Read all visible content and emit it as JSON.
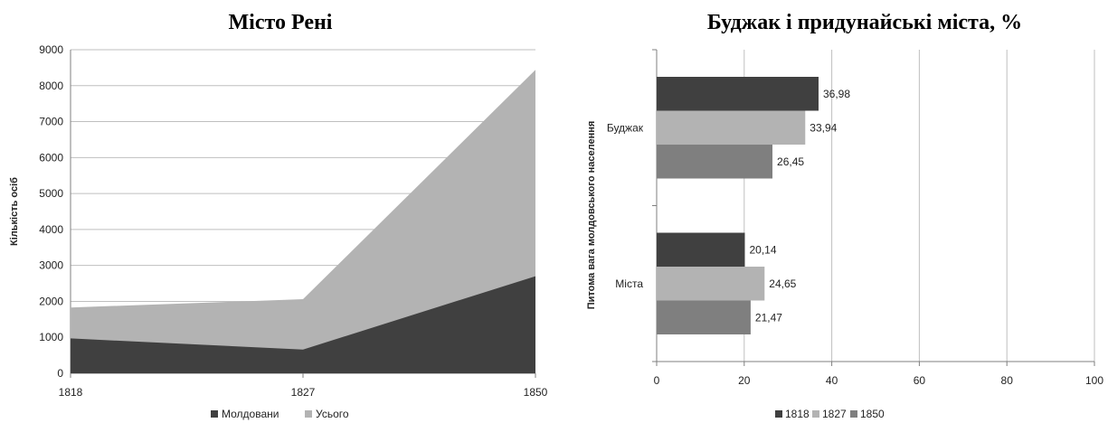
{
  "chart_data": [
    {
      "type": "area",
      "title": "Місто Рені",
      "xlabel": "",
      "ylabel": "Кількість осіб",
      "x": [
        "1818",
        "1827",
        "1850"
      ],
      "ylim": [
        0,
        9000
      ],
      "yticks": [
        0,
        1000,
        2000,
        3000,
        4000,
        5000,
        6000,
        7000,
        8000,
        9000
      ],
      "grid": true,
      "legend": "bottom",
      "series": [
        {
          "name": "Молдовани",
          "values": [
            970,
            660,
            2700
          ],
          "color": "#404040"
        },
        {
          "name": "Усього",
          "values": [
            1830,
            2060,
            8440
          ],
          "color": "#b3b3b3"
        }
      ]
    },
    {
      "type": "bar",
      "orientation": "horizontal",
      "title": "Буджак і придунайські міста, %",
      "xlabel": "",
      "ylabel": "Питома вага молдовського населення",
      "categories": [
        "Буджак",
        "Міста"
      ],
      "xlim": [
        0,
        100
      ],
      "xticks": [
        0,
        20,
        40,
        60,
        80,
        100
      ],
      "grid": true,
      "legend": "bottom",
      "series": [
        {
          "name": "1818",
          "values": [
            36.98,
            20.14
          ],
          "labels": [
            "36,98",
            "20,14"
          ],
          "color": "#404040"
        },
        {
          "name": "1827",
          "values": [
            33.94,
            24.65
          ],
          "labels": [
            "33,94",
            "24,65"
          ],
          "color": "#b3b3b3"
        },
        {
          "name": "1850",
          "values": [
            26.45,
            21.47
          ],
          "labels": [
            "26,45",
            "21,47"
          ],
          "color": "#7f7f7f"
        }
      ]
    }
  ]
}
